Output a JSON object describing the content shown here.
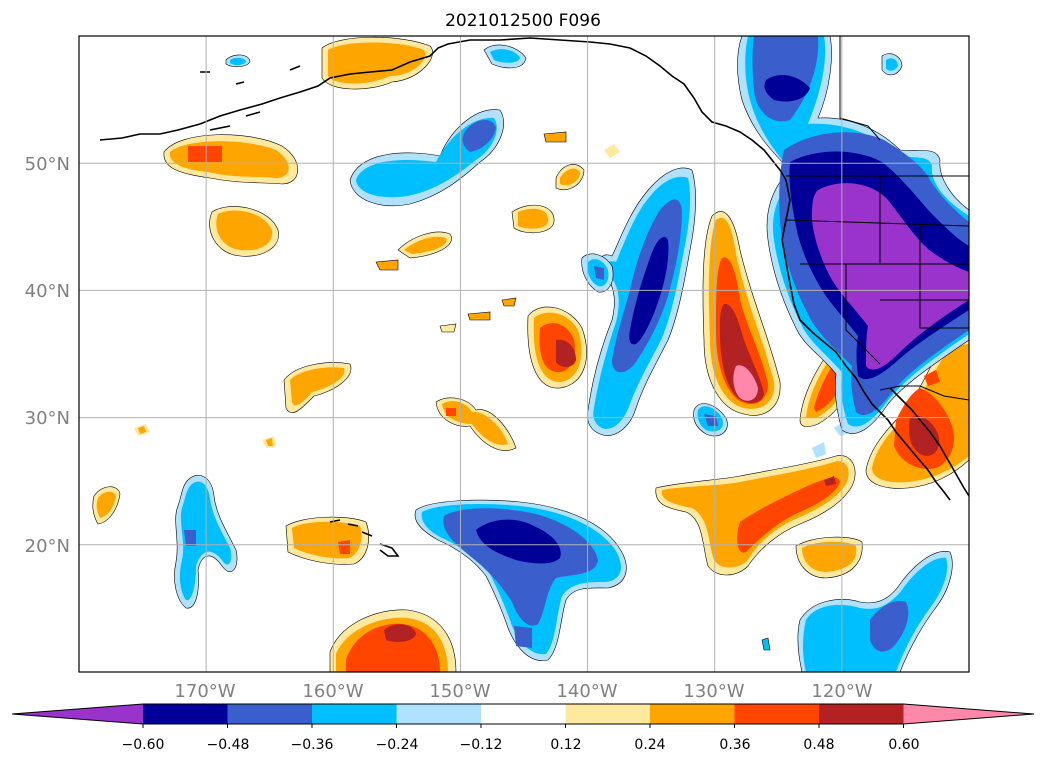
{
  "title": "2021012500 F096",
  "map": {
    "lat_labels": [
      "50°N",
      "40°N",
      "30°N",
      "20°N"
    ],
    "lat_values": [
      50,
      40,
      30,
      20
    ],
    "lon_labels": [
      "170°W",
      "160°W",
      "150°W",
      "140°W",
      "130°W",
      "120°W"
    ],
    "lon_values": [
      -170,
      -160,
      -150,
      -140,
      -130,
      -120
    ],
    "extent": {
      "lon_min": -180,
      "lon_max": -110,
      "lat_min": 10,
      "lat_max": 60
    },
    "gridlines": true
  },
  "colorbar": {
    "labels": [
      "−0.60",
      "−0.48",
      "−0.36",
      "−0.24",
      "−0.12",
      "0.12",
      "0.24",
      "0.36",
      "0.48",
      "0.60"
    ],
    "levels": [
      -0.6,
      -0.48,
      -0.36,
      -0.24,
      -0.12,
      0.12,
      0.24,
      0.36,
      0.48,
      0.6
    ],
    "colors": [
      "#9933cc",
      "#000099",
      "#3a5fcd",
      "#00bfff",
      "#b0e2ff",
      "#ffffff",
      "#ffe99e",
      "#ffa500",
      "#ff4500",
      "#b22222",
      "#ff88aa"
    ],
    "extend": "both"
  }
}
